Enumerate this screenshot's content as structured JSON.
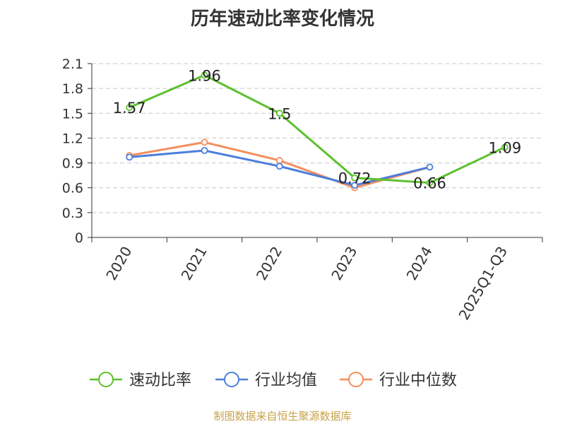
{
  "chart_data": {
    "type": "line",
    "title": "历年速动比率变化情况",
    "categories": [
      "2020",
      "2021",
      "2022",
      "2023",
      "2024",
      "2025Q1-Q3"
    ],
    "series": [
      {
        "name": "速动比率",
        "color": "#5cc02c",
        "values": [
          1.57,
          1.96,
          1.5,
          0.72,
          0.66,
          1.09
        ],
        "data_labels": [
          "1.57",
          "1.96",
          "1.5",
          "0.72",
          "0.66",
          "1.09"
        ]
      },
      {
        "name": "行业均值",
        "color": "#4c7edb",
        "values": [
          0.97,
          1.05,
          0.86,
          0.63,
          0.85,
          null
        ]
      },
      {
        "name": "行业中位数",
        "color": "#f38f5e",
        "values": [
          0.99,
          1.15,
          0.93,
          0.6,
          0.85,
          null
        ]
      }
    ],
    "y_ticks": [
      "0",
      "0.3",
      "0.6",
      "0.9",
      "1.2",
      "1.5",
      "1.8",
      "2.1"
    ],
    "ylim": [
      0,
      2.1
    ],
    "grid": true,
    "legend_position": "bottom"
  },
  "footer": {
    "source": "制图数据来自恒生聚源数据库"
  }
}
